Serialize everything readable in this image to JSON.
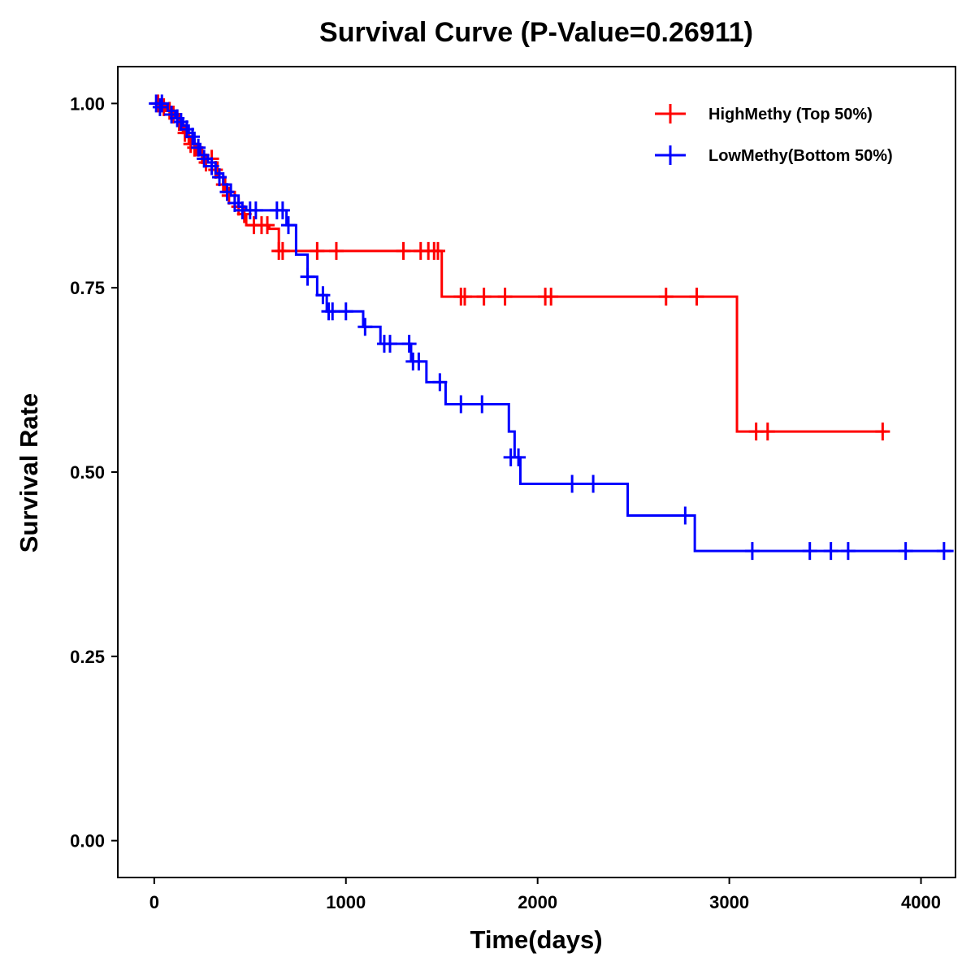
{
  "chart_data": {
    "type": "line",
    "subtype": "kaplan-meier",
    "title": "Survival Curve (P-Value=0.26911)",
    "xlabel": "Time(days)",
    "ylabel": "Survival Rate",
    "xlim": [
      -190,
      4180
    ],
    "ylim": [
      -0.05,
      1.05
    ],
    "x_ticks": [
      0,
      1000,
      2000,
      3000,
      4000
    ],
    "x_tick_labels": [
      "0",
      "1000",
      "2000",
      "3000",
      "4000"
    ],
    "y_ticks": [
      0,
      0.25,
      0.5,
      0.75,
      1.0
    ],
    "y_tick_labels": [
      "0.00",
      "0.25",
      "0.50",
      "0.75",
      "1.00"
    ],
    "legend_position": "top-right",
    "series": [
      {
        "name": "HighMethy (Top 50%)",
        "color": "#ff0000",
        "steps": [
          [
            0,
            1.0
          ],
          [
            60,
            0.99
          ],
          [
            120,
            0.975
          ],
          [
            150,
            0.96
          ],
          [
            180,
            0.945
          ],
          [
            220,
            0.93
          ],
          [
            280,
            0.92
          ],
          [
            330,
            0.9
          ],
          [
            370,
            0.88
          ],
          [
            420,
            0.86
          ],
          [
            460,
            0.85
          ],
          [
            480,
            0.835
          ],
          [
            600,
            0.83
          ],
          [
            650,
            0.8
          ],
          [
            1500,
            0.8
          ],
          [
            1500,
            0.738
          ],
          [
            3040,
            0.738
          ],
          [
            3040,
            0.555
          ],
          [
            3820,
            0.555
          ]
        ],
        "censors": [
          [
            20,
            1.0
          ],
          [
            50,
            0.995
          ],
          [
            80,
            0.99
          ],
          [
            100,
            0.985
          ],
          [
            130,
            0.975
          ],
          [
            160,
            0.96
          ],
          [
            190,
            0.945
          ],
          [
            210,
            0.94
          ],
          [
            250,
            0.93
          ],
          [
            270,
            0.92
          ],
          [
            300,
            0.925
          ],
          [
            320,
            0.91
          ],
          [
            360,
            0.89
          ],
          [
            390,
            0.875
          ],
          [
            440,
            0.86
          ],
          [
            470,
            0.85
          ],
          [
            520,
            0.835
          ],
          [
            560,
            0.835
          ],
          [
            590,
            0.835
          ],
          [
            650,
            0.8
          ],
          [
            670,
            0.8
          ],
          [
            850,
            0.8
          ],
          [
            950,
            0.8
          ],
          [
            1300,
            0.8
          ],
          [
            1390,
            0.8
          ],
          [
            1430,
            0.8
          ],
          [
            1460,
            0.8
          ],
          [
            1480,
            0.8
          ],
          [
            1600,
            0.738
          ],
          [
            1620,
            0.738
          ],
          [
            1720,
            0.738
          ],
          [
            1830,
            0.738
          ],
          [
            2040,
            0.738
          ],
          [
            2070,
            0.738
          ],
          [
            2670,
            0.738
          ],
          [
            2830,
            0.738
          ],
          [
            3140,
            0.555
          ],
          [
            3200,
            0.555
          ],
          [
            3800,
            0.555
          ]
        ]
      },
      {
        "name": "LowMethy(Bottom 50%)",
        "color": "#0000ff",
        "steps": [
          [
            0,
            1.0
          ],
          [
            70,
            0.99
          ],
          [
            110,
            0.98
          ],
          [
            150,
            0.97
          ],
          [
            180,
            0.96
          ],
          [
            210,
            0.945
          ],
          [
            240,
            0.93
          ],
          [
            280,
            0.92
          ],
          [
            320,
            0.905
          ],
          [
            360,
            0.89
          ],
          [
            400,
            0.875
          ],
          [
            440,
            0.86
          ],
          [
            480,
            0.855
          ],
          [
            690,
            0.855
          ],
          [
            690,
            0.835
          ],
          [
            740,
            0.835
          ],
          [
            740,
            0.795
          ],
          [
            800,
            0.795
          ],
          [
            800,
            0.765
          ],
          [
            850,
            0.765
          ],
          [
            850,
            0.74
          ],
          [
            900,
            0.74
          ],
          [
            900,
            0.718
          ],
          [
            1090,
            0.718
          ],
          [
            1090,
            0.697
          ],
          [
            1180,
            0.697
          ],
          [
            1180,
            0.674
          ],
          [
            1340,
            0.674
          ],
          [
            1340,
            0.65
          ],
          [
            1420,
            0.65
          ],
          [
            1420,
            0.622
          ],
          [
            1520,
            0.622
          ],
          [
            1520,
            0.592
          ],
          [
            1850,
            0.592
          ],
          [
            1850,
            0.555
          ],
          [
            1880,
            0.555
          ],
          [
            1880,
            0.52
          ],
          [
            1910,
            0.52
          ],
          [
            1910,
            0.484
          ],
          [
            2470,
            0.484
          ],
          [
            2470,
            0.441
          ],
          [
            2820,
            0.441
          ],
          [
            2820,
            0.393
          ],
          [
            4170,
            0.393
          ]
        ],
        "censors": [
          [
            10,
            1.0
          ],
          [
            30,
            0.995
          ],
          [
            40,
            1.0
          ],
          [
            90,
            0.985
          ],
          [
            120,
            0.98
          ],
          [
            140,
            0.975
          ],
          [
            170,
            0.965
          ],
          [
            200,
            0.955
          ],
          [
            230,
            0.94
          ],
          [
            260,
            0.925
          ],
          [
            300,
            0.915
          ],
          [
            340,
            0.9
          ],
          [
            380,
            0.88
          ],
          [
            420,
            0.865
          ],
          [
            460,
            0.855
          ],
          [
            500,
            0.855
          ],
          [
            530,
            0.855
          ],
          [
            640,
            0.855
          ],
          [
            670,
            0.855
          ],
          [
            700,
            0.835
          ],
          [
            800,
            0.765
          ],
          [
            880,
            0.74
          ],
          [
            910,
            0.718
          ],
          [
            930,
            0.718
          ],
          [
            1000,
            0.718
          ],
          [
            1100,
            0.697
          ],
          [
            1200,
            0.674
          ],
          [
            1230,
            0.674
          ],
          [
            1330,
            0.674
          ],
          [
            1350,
            0.65
          ],
          [
            1380,
            0.65
          ],
          [
            1490,
            0.622
          ],
          [
            1600,
            0.592
          ],
          [
            1710,
            0.592
          ],
          [
            1860,
            0.52
          ],
          [
            1900,
            0.52
          ],
          [
            2180,
            0.484
          ],
          [
            2290,
            0.484
          ],
          [
            2770,
            0.441
          ],
          [
            3120,
            0.393
          ],
          [
            3420,
            0.393
          ],
          [
            3530,
            0.393
          ],
          [
            3620,
            0.393
          ],
          [
            3920,
            0.393
          ],
          [
            4120,
            0.393
          ]
        ]
      }
    ]
  }
}
